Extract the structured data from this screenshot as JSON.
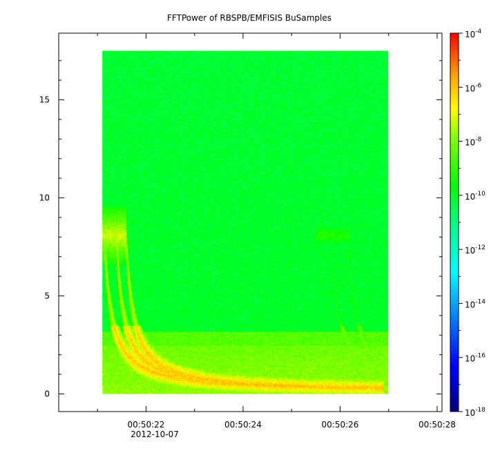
{
  "chart_data": {
    "type": "heatmap",
    "title": "FFTPower of RBSPB/EMFISIS  BuSamples",
    "x_axis": {
      "ticks": [
        "00:50:22",
        "00:50:24",
        "00:50:26",
        "00:50:28"
      ],
      "date_label": "2012-10-07",
      "range": [
        "00:50:20.2",
        "00:50:28.1"
      ],
      "data_range": [
        "00:50:21.1",
        "00:50:27.0"
      ]
    },
    "y_axis": {
      "ticks": [
        "0",
        "5",
        "10",
        "15"
      ],
      "range": [
        -0.9,
        18.4
      ],
      "data_range": [
        0,
        17.5
      ]
    },
    "colorbar": {
      "scale": "log",
      "range": [
        1e-18,
        0.0001
      ],
      "ticks": [
        {
          "base": "10",
          "exp": "-4"
        },
        {
          "base": "10",
          "exp": "-6"
        },
        {
          "base": "10",
          "exp": "-8"
        },
        {
          "base": "10",
          "exp": "-10"
        },
        {
          "base": "10",
          "exp": "-12"
        },
        {
          "base": "10",
          "exp": "-14"
        },
        {
          "base": "10",
          "exp": "-16"
        },
        {
          "base": "10",
          "exp": "-18"
        }
      ]
    },
    "features": {
      "background_level": "1e-10",
      "low_frequency_band_level": "1e-8",
      "dispersed_traces": [
        {
          "start": "00:50:21.1",
          "peak_level": "1e-6"
        },
        {
          "start": "00:50:25.8",
          "peak_level": "1e-8"
        }
      ]
    },
    "colors": {
      "frame": "#000000",
      "background": "#ffffff"
    }
  }
}
